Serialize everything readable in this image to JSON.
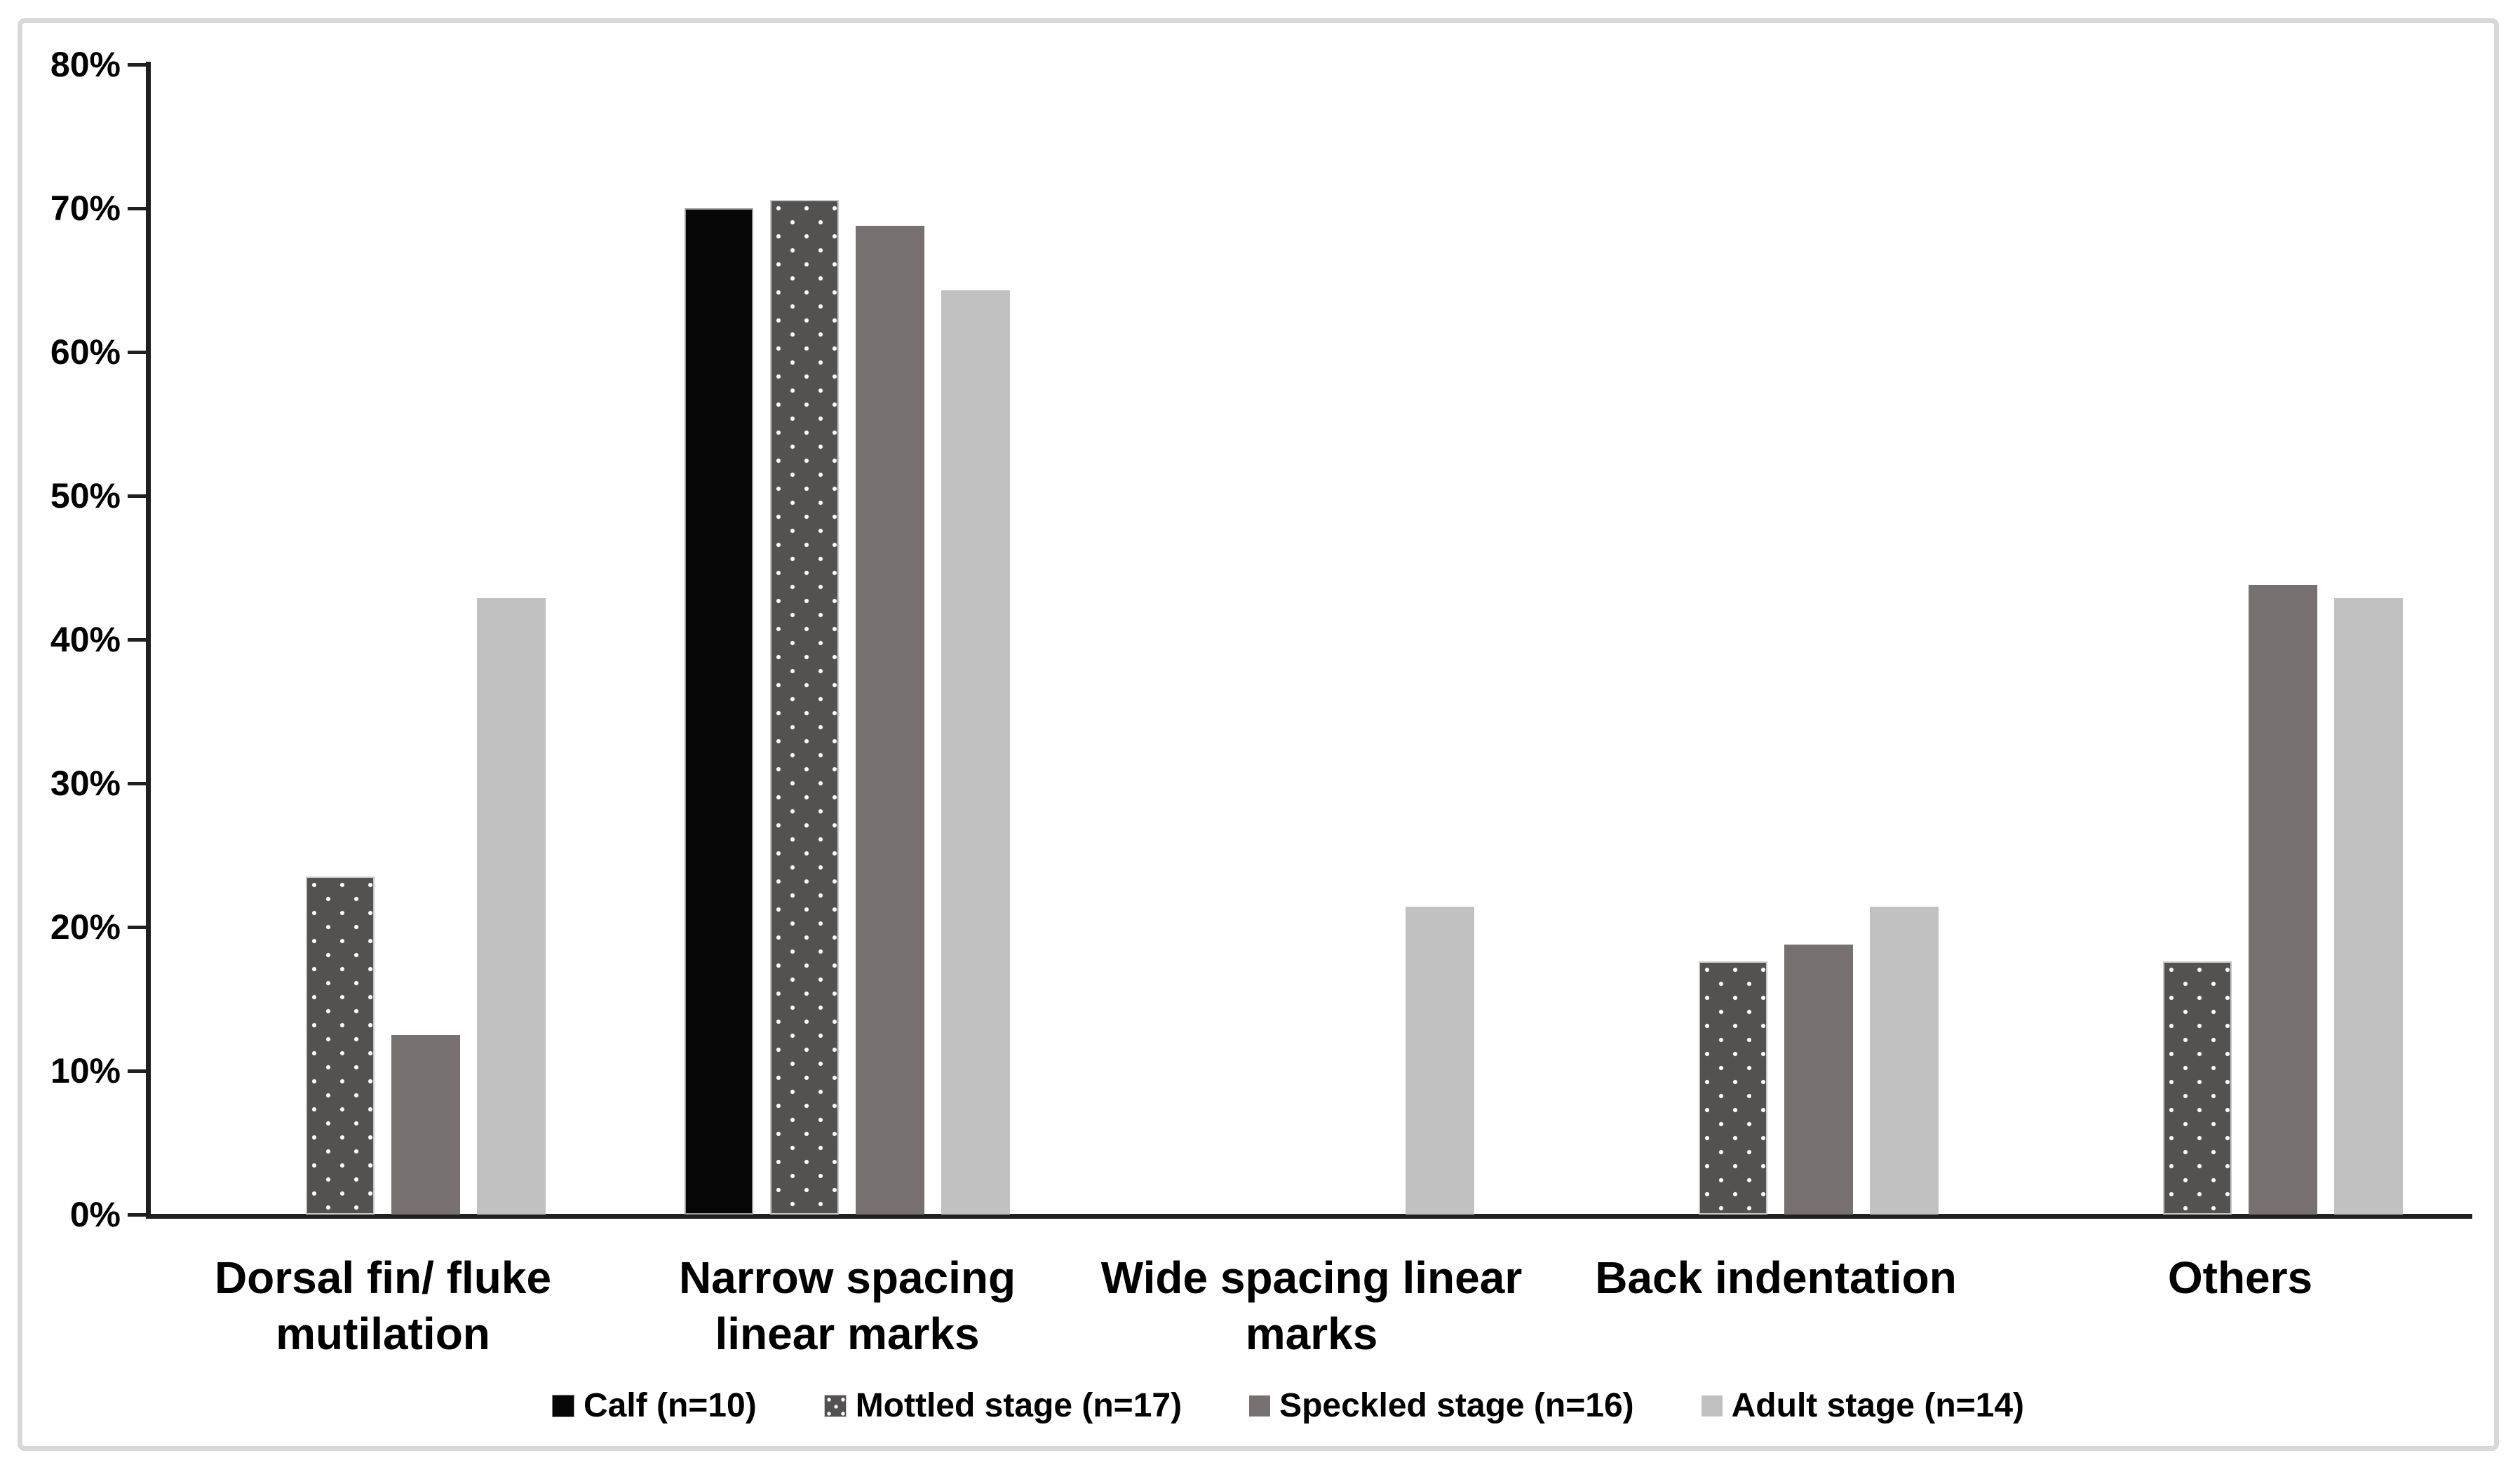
{
  "chart_data": {
    "type": "bar",
    "title": "",
    "categories": [
      "Dorsal fin/ fluke mutilation",
      "Narrow spacing linear marks",
      "Wide spacing linear marks",
      "Back indentation",
      "Others"
    ],
    "category_lines": [
      [
        "Dorsal fin/ fluke",
        "mutilation"
      ],
      [
        "Narrow spacing",
        "linear marks"
      ],
      [
        "Wide spacing linear",
        "marks"
      ],
      [
        "Back indentation"
      ],
      [
        "Others"
      ]
    ],
    "series": [
      {
        "name": "Calf (n=10)",
        "values": [
          0,
          70.0,
          0,
          0,
          0
        ],
        "fill": "#060606",
        "pattern": "solid"
      },
      {
        "name": "Mottled stage (n=17)",
        "values": [
          23.5,
          70.6,
          0,
          17.6,
          17.6
        ],
        "fill": "#545151",
        "pattern": "white-dots"
      },
      {
        "name": "Speckled stage (n=16)",
        "values": [
          12.5,
          68.8,
          0,
          18.8,
          43.8
        ],
        "fill": "#767070",
        "pattern": "solid"
      },
      {
        "name": "Adult stage (n=14)",
        "values": [
          42.9,
          64.3,
          21.4,
          21.4,
          42.9
        ],
        "fill": "#c1c1c1",
        "pattern": "solid"
      }
    ],
    "ylabel": "",
    "xlabel": "",
    "ylim": [
      0,
      80
    ],
    "ytick_step": 10,
    "ytick_labels": [
      "0%",
      "10%",
      "20%",
      "30%",
      "40%",
      "50%",
      "60%",
      "70%",
      "80%"
    ],
    "grid": false,
    "legend_position": "bottom"
  },
  "colors": {
    "axis": "#1f1f1f",
    "frame": "#d8d8d8",
    "background": "#ffffff",
    "text": "#000000"
  }
}
